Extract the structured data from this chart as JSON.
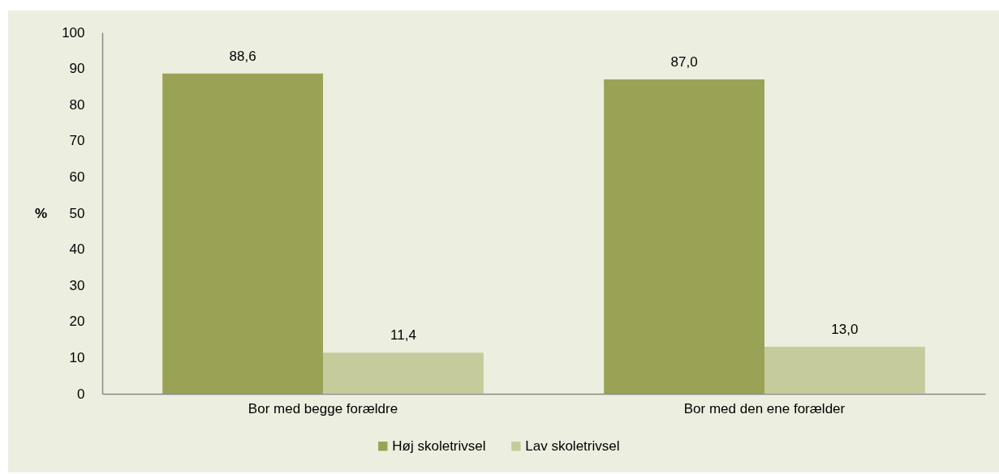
{
  "chart_data": {
    "type": "bar",
    "ylabel": "%",
    "categories": [
      "Bor med begge forældre",
      "Bor med den ene forælder"
    ],
    "series": [
      {
        "name": "Høj skoletrivsel",
        "color": "#9aa256",
        "values": [
          88.6,
          87.0
        ],
        "value_labels": [
          "88,6",
          "87,0"
        ]
      },
      {
        "name": "Lav skoletrivsel",
        "color": "#c6cb9c",
        "values": [
          11.4,
          13.0
        ],
        "value_labels": [
          "11,4",
          "13,0"
        ]
      }
    ],
    "ylim": [
      0,
      100
    ],
    "yticks": [
      0,
      10,
      20,
      30,
      40,
      50,
      60,
      70,
      80,
      90,
      100
    ],
    "grid": false,
    "legend": "bottom"
  }
}
